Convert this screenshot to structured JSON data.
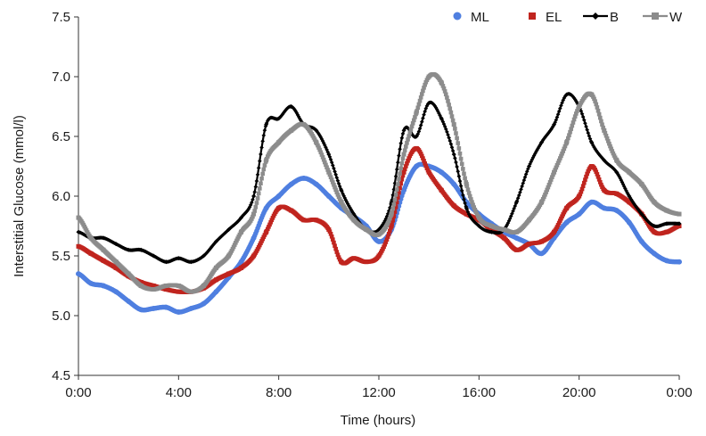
{
  "chart_data": {
    "type": "line",
    "title": "",
    "xlabel": "Time (hours)",
    "ylabel": "Interstitial  Glucose  (mmol/l)",
    "x_ticks": [
      {
        "hour": 0,
        "label": "0:00"
      },
      {
        "hour": 4,
        "label": "4:00"
      },
      {
        "hour": 8,
        "label": "8:00"
      },
      {
        "hour": 12,
        "label": "12:00"
      },
      {
        "hour": 16,
        "label": "16:00"
      },
      {
        "hour": 20,
        "label": "20:00"
      },
      {
        "hour": 24,
        "label": "0:00"
      }
    ],
    "xlim": [
      0,
      24
    ],
    "ylim": [
      4.5,
      7.5
    ],
    "y_ticks": [
      {
        "value": 4.5,
        "label": "4.5"
      },
      {
        "value": 5.0,
        "label": "5.0"
      },
      {
        "value": 5.5,
        "label": "5.5"
      },
      {
        "value": 6.0,
        "label": "6.0"
      },
      {
        "value": 6.5,
        "label": "6.5"
      },
      {
        "value": 7.0,
        "label": "7.0"
      },
      {
        "value": 7.5,
        "label": "7.5"
      }
    ],
    "grid": false,
    "legend_position": "top-right",
    "x_hours": [
      0,
      0.5,
      1,
      1.5,
      2,
      2.5,
      3,
      3.5,
      4,
      4.5,
      5,
      5.5,
      6,
      6.5,
      7,
      7.5,
      8,
      8.5,
      9,
      9.5,
      10,
      10.5,
      11,
      11.5,
      12,
      12.5,
      13,
      13.5,
      14,
      14.5,
      15,
      15.5,
      16,
      16.5,
      17,
      17.5,
      18,
      18.5,
      19,
      19.5,
      20,
      20.5,
      21,
      21.5,
      22,
      22.5,
      23,
      23.5,
      24
    ],
    "series": [
      {
        "name": "ML",
        "color": "#4f7fe0",
        "marker": "circle",
        "values": [
          5.35,
          5.27,
          5.25,
          5.2,
          5.12,
          5.05,
          5.06,
          5.07,
          5.03,
          5.06,
          5.1,
          5.2,
          5.32,
          5.45,
          5.65,
          5.9,
          6.0,
          6.1,
          6.15,
          6.1,
          6.0,
          5.9,
          5.83,
          5.75,
          5.62,
          5.72,
          6.05,
          6.25,
          6.25,
          6.2,
          6.1,
          5.95,
          5.85,
          5.77,
          5.7,
          5.65,
          5.6,
          5.52,
          5.65,
          5.78,
          5.85,
          5.95,
          5.9,
          5.88,
          5.78,
          5.62,
          5.52,
          5.46,
          5.45
        ]
      },
      {
        "name": "EL",
        "color": "#c0241e",
        "marker": "square",
        "values": [
          5.58,
          5.52,
          5.46,
          5.4,
          5.33,
          5.28,
          5.25,
          5.22,
          5.2,
          5.2,
          5.23,
          5.3,
          5.35,
          5.4,
          5.5,
          5.7,
          5.9,
          5.88,
          5.8,
          5.8,
          5.72,
          5.45,
          5.48,
          5.45,
          5.5,
          5.75,
          6.2,
          6.4,
          6.2,
          6.05,
          5.92,
          5.85,
          5.8,
          5.72,
          5.65,
          5.55,
          5.6,
          5.62,
          5.7,
          5.9,
          6.0,
          6.25,
          6.05,
          6.02,
          5.95,
          5.85,
          5.7,
          5.7,
          5.75
        ]
      },
      {
        "name": "B",
        "color": "#000000",
        "marker": "diamond",
        "values": [
          5.7,
          5.65,
          5.65,
          5.6,
          5.55,
          5.55,
          5.5,
          5.45,
          5.48,
          5.45,
          5.5,
          5.62,
          5.72,
          5.82,
          6.0,
          6.6,
          6.65,
          6.75,
          6.6,
          6.55,
          6.35,
          6.05,
          5.85,
          5.72,
          5.72,
          5.95,
          6.55,
          6.5,
          6.78,
          6.65,
          6.35,
          5.9,
          5.75,
          5.7,
          5.72,
          5.95,
          6.25,
          6.45,
          6.6,
          6.85,
          6.75,
          6.45,
          6.3,
          6.2,
          6.0,
          5.85,
          5.75,
          5.77,
          5.77
        ]
      },
      {
        "name": "W",
        "color": "#8c8c8c",
        "marker": "square",
        "values": [
          5.82,
          5.65,
          5.55,
          5.45,
          5.35,
          5.25,
          5.22,
          5.25,
          5.25,
          5.2,
          5.25,
          5.4,
          5.5,
          5.7,
          5.85,
          6.3,
          6.45,
          6.55,
          6.6,
          6.45,
          6.2,
          5.95,
          5.8,
          5.72,
          5.68,
          5.85,
          6.35,
          6.7,
          7.0,
          6.95,
          6.6,
          6.1,
          5.82,
          5.75,
          5.72,
          5.7,
          5.8,
          5.95,
          6.2,
          6.45,
          6.75,
          6.85,
          6.55,
          6.3,
          6.2,
          6.1,
          5.95,
          5.88,
          5.85
        ]
      }
    ]
  }
}
